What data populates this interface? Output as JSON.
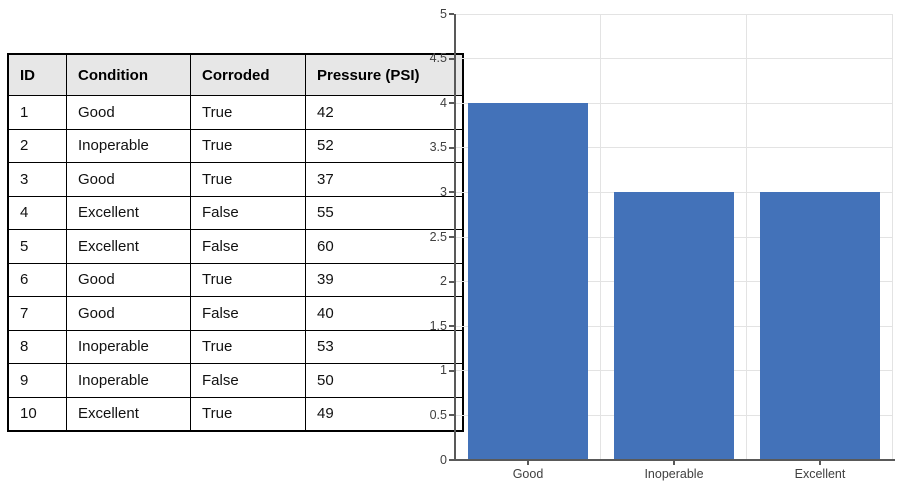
{
  "table": {
    "headers": [
      "ID",
      "Condition",
      "Corroded",
      "Pressure (PSI)"
    ],
    "rows": [
      [
        "1",
        "Good",
        "True",
        "42"
      ],
      [
        "2",
        "Inoperable",
        "True",
        "52"
      ],
      [
        "3",
        "Good",
        "True",
        "37"
      ],
      [
        "4",
        "Excellent",
        "False",
        "55"
      ],
      [
        "5",
        "Excellent",
        "False",
        "60"
      ],
      [
        "6",
        "Good",
        "True",
        "39"
      ],
      [
        "7",
        "Good",
        "False",
        "40"
      ],
      [
        "8",
        "Inoperable",
        "True",
        "53"
      ],
      [
        "9",
        "Inoperable",
        "False",
        "50"
      ],
      [
        "10",
        "Excellent",
        "True",
        "49"
      ]
    ]
  },
  "chart_data": {
    "type": "bar",
    "categories": [
      "Good",
      "Inoperable",
      "Excellent"
    ],
    "values": [
      4,
      3,
      3
    ],
    "title": "",
    "xlabel": "",
    "ylabel": "",
    "ylim": [
      0,
      5
    ],
    "ytick_step": 0.5,
    "ytick_labels": [
      "0",
      "0.5",
      "1",
      "1.5",
      "2",
      "2.5",
      "3",
      "3.5",
      "4",
      "4.5",
      "5"
    ],
    "grid": true,
    "legend_position": "none"
  },
  "colors": {
    "bar_fill": "#4372B9",
    "gridline": "#e3e3e3",
    "axis": "#595959",
    "axis_label": "#404040",
    "table_header_bg": "#e7e7e7",
    "table_border": "#000000"
  }
}
